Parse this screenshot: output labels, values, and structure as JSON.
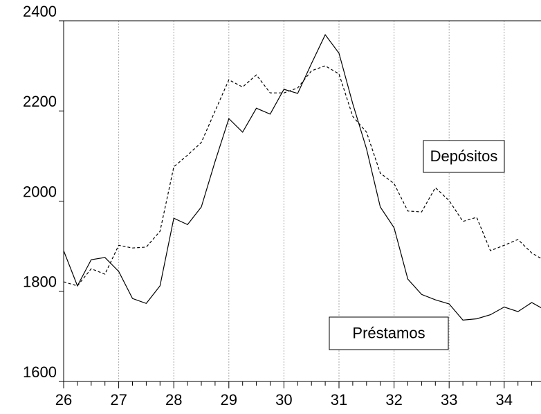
{
  "chart_data": {
    "type": "line",
    "x": [
      26,
      26.25,
      26.5,
      26.75,
      27,
      27.25,
      27.5,
      27.75,
      28,
      28.25,
      28.5,
      28.75,
      29,
      29.25,
      29.5,
      29.75,
      30,
      30.25,
      30.5,
      30.75,
      31,
      31.25,
      31.5,
      31.75,
      32,
      32.25,
      32.5,
      32.75,
      33,
      33.25,
      33.5,
      33.75,
      34,
      34.25,
      34.5,
      34.75
    ],
    "series": [
      {
        "name": "Préstamos",
        "color": "#000000",
        "dash": "solid",
        "values": [
          1890,
          1812,
          1870,
          1875,
          1844,
          1784,
          1773,
          1812,
          1962,
          1948,
          1987,
          2088,
          2183,
          2153,
          2206,
          2193,
          2248,
          2239,
          2305,
          2369,
          2328,
          2216,
          2116,
          1987,
          1941,
          1827,
          1793,
          1781,
          1772,
          1736,
          1739,
          1748,
          1765,
          1755,
          1775,
          1758
        ]
      },
      {
        "name": "Depósitos",
        "color": "#000000",
        "dash": "dashed",
        "values": [
          1821,
          1812,
          1850,
          1838,
          1902,
          1896,
          1898,
          1933,
          2076,
          2102,
          2130,
          2200,
          2269,
          2253,
          2280,
          2240,
          2240,
          2251,
          2289,
          2300,
          2282,
          2188,
          2153,
          2062,
          2039,
          1978,
          1976,
          2030,
          2001,
          1955,
          1964,
          1890,
          1902,
          1915,
          1885,
          1867
        ]
      }
    ],
    "xlim": [
      26,
      34.67
    ],
    "xticks": [
      26,
      27,
      28,
      29,
      30,
      31,
      32,
      33,
      34
    ],
    "ylim": [
      1600,
      2400
    ],
    "yticks": [
      1600,
      1800,
      2000,
      2200,
      2400
    ],
    "grid": "vertical"
  }
}
